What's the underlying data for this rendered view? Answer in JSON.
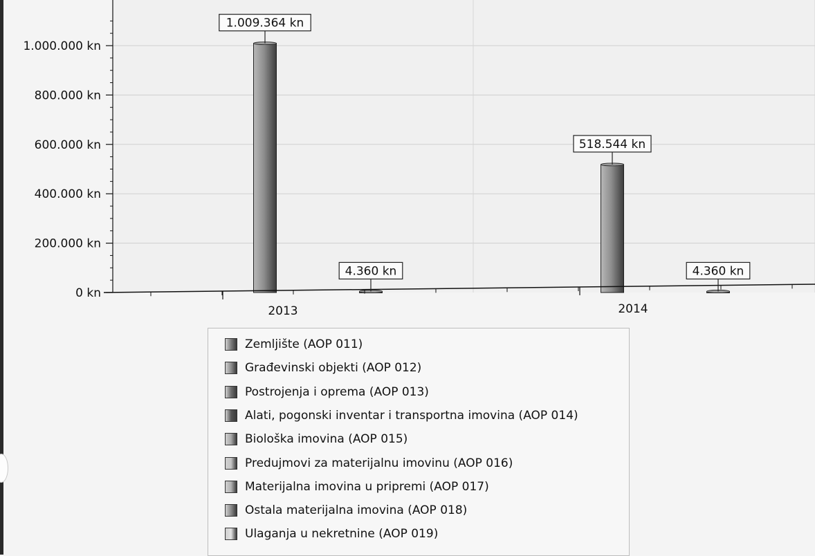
{
  "chart_data": {
    "type": "bar",
    "categories": [
      "2013",
      "2014"
    ],
    "series": [
      {
        "name": "Zemljište (AOP 011)",
        "values": [
          0,
          0
        ],
        "color": "#7c7c7c"
      },
      {
        "name": "Građevinski objekti (AOP 012)",
        "values": [
          1009364,
          518544
        ],
        "color": "#8e8e8e"
      },
      {
        "name": "Postrojenja i oprema (AOP 013)",
        "values": [
          4360,
          4360
        ],
        "color": "#6e6e6e"
      },
      {
        "name": "Alati, pogonski inventar i transportna imovina (AOP 014)",
        "values": [
          0,
          0
        ],
        "color": "#555555"
      },
      {
        "name": "Biološka imovina (AOP 015)",
        "values": [
          0,
          0
        ],
        "color": "#a9a9a9"
      },
      {
        "name": "Predujmovi za materijalnu imovinu (AOP 016)",
        "values": [
          0,
          0
        ],
        "color": "#c6c6c6"
      },
      {
        "name": "Materijalna imovina u pripremi (AOP 017)",
        "values": [
          0,
          0
        ],
        "color": "#b2b2b2"
      },
      {
        "name": "Ostala materijalna imovina (AOP 018)",
        "values": [
          0,
          0
        ],
        "color": "#8a8a8a"
      },
      {
        "name": "Ulaganja u nekretnine (AOP 019)",
        "values": [
          0,
          0
        ],
        "color": "#e3e3e3"
      }
    ],
    "data_labels": [
      {
        "category": "2013",
        "series": "Građevinski objekti (AOP 012)",
        "text": "1.009.364 kn"
      },
      {
        "category": "2013",
        "series": "Postrojenja i oprema (AOP 013)",
        "text": "4.360 kn"
      },
      {
        "category": "2014",
        "series": "Građevinski objekti (AOP 012)",
        "text": "518.544 kn"
      },
      {
        "category": "2014",
        "series": "Postrojenja i oprema (AOP 013)",
        "text": "4.360 kn"
      }
    ],
    "y_ticks": [
      {
        "value": 0,
        "label": "0 kn"
      },
      {
        "value": 200000,
        "label": "200.000 kn"
      },
      {
        "value": 400000,
        "label": "400.000 kn"
      },
      {
        "value": 600000,
        "label": "600.000 kn"
      },
      {
        "value": 800000,
        "label": "800.000 kn"
      },
      {
        "value": 1000000,
        "label": "1.000.000 kn"
      }
    ],
    "ylim": [
      0,
      1110000
    ],
    "grid": true,
    "legend_position": "bottom"
  }
}
